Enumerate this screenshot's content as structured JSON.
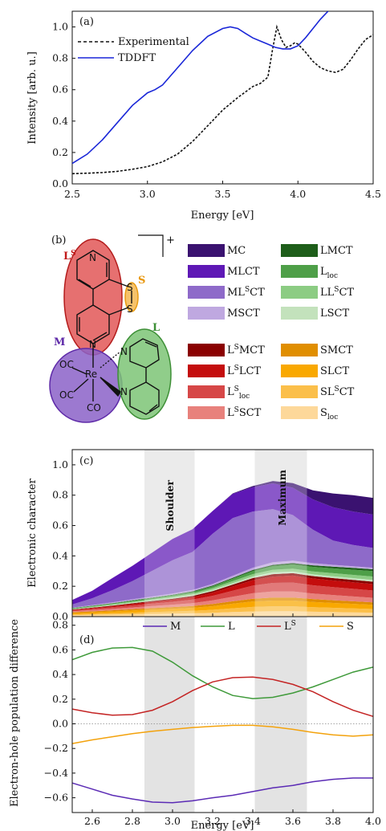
{
  "chart_data": [
    {
      "id": "a",
      "type": "line",
      "panel_label": "(a)",
      "xlabel": "Energy [eV]",
      "ylabel": "Intensity [arb. u.]",
      "xlim": [
        2.5,
        4.5
      ],
      "ylim": [
        0,
        1.1
      ],
      "xticks": [
        2.5,
        3.0,
        3.5,
        4.0,
        4.5
      ],
      "yticks": [
        0,
        0.2,
        0.4,
        0.6,
        0.8,
        1.0
      ],
      "xtick_labels": [
        "2.5",
        "3.0",
        "3.5",
        "4.0",
        "4.5"
      ],
      "ytick_labels": [
        "0.0",
        "0.2",
        "0.4",
        "0.6",
        "0.8",
        "1.0"
      ],
      "legend_position": "top-left",
      "series": [
        {
          "name": "Experimental",
          "color": "#111111",
          "dash": "dashed",
          "x": [
            2.5,
            2.6,
            2.7,
            2.8,
            2.9,
            3.0,
            3.1,
            3.2,
            3.3,
            3.4,
            3.5,
            3.6,
            3.7,
            3.75,
            3.8,
            3.83,
            3.86,
            3.89,
            3.92,
            3.95,
            3.98,
            4.0,
            4.05,
            4.1,
            4.15,
            4.2,
            4.25,
            4.3,
            4.35,
            4.4,
            4.45,
            4.5
          ],
          "y": [
            0.065,
            0.068,
            0.072,
            0.08,
            0.093,
            0.11,
            0.14,
            0.19,
            0.27,
            0.37,
            0.47,
            0.55,
            0.62,
            0.64,
            0.68,
            0.85,
            1.0,
            0.92,
            0.87,
            0.88,
            0.9,
            0.89,
            0.84,
            0.78,
            0.74,
            0.72,
            0.71,
            0.73,
            0.79,
            0.86,
            0.92,
            0.95
          ]
        },
        {
          "name": "TDDFT",
          "color": "#1a27d8",
          "dash": "solid",
          "x": [
            2.5,
            2.6,
            2.7,
            2.8,
            2.9,
            3.0,
            3.05,
            3.1,
            3.2,
            3.3,
            3.4,
            3.5,
            3.55,
            3.6,
            3.65,
            3.7,
            3.75,
            3.8,
            3.85,
            3.9,
            3.95,
            4.0,
            4.05,
            4.1,
            4.15,
            4.2
          ],
          "y": [
            0.13,
            0.19,
            0.28,
            0.39,
            0.5,
            0.58,
            0.6,
            0.63,
            0.74,
            0.85,
            0.94,
            0.99,
            1.0,
            0.99,
            0.96,
            0.93,
            0.91,
            0.89,
            0.87,
            0.86,
            0.86,
            0.88,
            0.93,
            0.99,
            1.05,
            1.1
          ]
        }
      ]
    },
    {
      "id": "c",
      "type": "area",
      "panel_label": "(c)",
      "ylabel": "Electronic character",
      "xlim": [
        2.5,
        4.0
      ],
      "ylim": [
        0,
        1.1
      ],
      "yticks": [
        0,
        0.2,
        0.4,
        0.6,
        0.8,
        1.0
      ],
      "ytick_labels": [
        "0.0",
        "0.2",
        "0.4",
        "0.6",
        "0.8",
        "1.0"
      ],
      "shaded_regions": [
        {
          "label": "Shoulder",
          "x_range": [
            2.86,
            3.11
          ]
        },
        {
          "label": "Maximum",
          "x_range": [
            3.41,
            3.67
          ]
        }
      ],
      "x": [
        2.5,
        2.6,
        2.7,
        2.8,
        2.9,
        3.0,
        3.1,
        3.2,
        3.3,
        3.4,
        3.5,
        3.6,
        3.7,
        3.8,
        3.9,
        4.0
      ],
      "stack_note": "stacked from bottom (first) to top (last)",
      "series": [
        {
          "name": "Sloc",
          "color": "#fdd89a",
          "values": [
            0.01,
            0.012,
            0.014,
            0.016,
            0.018,
            0.02,
            0.022,
            0.025,
            0.03,
            0.034,
            0.036,
            0.036,
            0.032,
            0.03,
            0.028,
            0.026
          ]
        },
        {
          "name": "SLSCT",
          "color": "#fbbf4a",
          "values": [
            0.005,
            0.006,
            0.008,
            0.01,
            0.012,
            0.014,
            0.016,
            0.02,
            0.025,
            0.03,
            0.032,
            0.032,
            0.03,
            0.028,
            0.026,
            0.024
          ]
        },
        {
          "name": "SLCT",
          "color": "#f9a800",
          "values": [
            0.008,
            0.01,
            0.012,
            0.014,
            0.016,
            0.018,
            0.02,
            0.024,
            0.03,
            0.036,
            0.038,
            0.038,
            0.035,
            0.032,
            0.03,
            0.028
          ]
        },
        {
          "name": "SMCT",
          "color": "#e08e00",
          "values": [
            0.006,
            0.007,
            0.008,
            0.009,
            0.01,
            0.011,
            0.012,
            0.014,
            0.016,
            0.018,
            0.02,
            0.02,
            0.019,
            0.018,
            0.017,
            0.016
          ]
        },
        {
          "name": "LSSCT",
          "color": "#e8817c",
          "values": [
            0.006,
            0.008,
            0.01,
            0.012,
            0.014,
            0.016,
            0.019,
            0.024,
            0.03,
            0.036,
            0.04,
            0.04,
            0.036,
            0.034,
            0.032,
            0.03
          ]
        },
        {
          "name": "LSloc",
          "color": "#d64747",
          "values": [
            0.006,
            0.008,
            0.01,
            0.013,
            0.016,
            0.019,
            0.023,
            0.03,
            0.04,
            0.05,
            0.056,
            0.058,
            0.054,
            0.052,
            0.05,
            0.048
          ]
        },
        {
          "name": "LSLCT",
          "color": "#c40d0d",
          "values": [
            0.004,
            0.005,
            0.007,
            0.009,
            0.011,
            0.013,
            0.016,
            0.021,
            0.028,
            0.036,
            0.042,
            0.046,
            0.045,
            0.044,
            0.043,
            0.042
          ]
        },
        {
          "name": "LSMCT",
          "color": "#8a0000",
          "values": [
            0.002,
            0.003,
            0.004,
            0.005,
            0.006,
            0.007,
            0.008,
            0.01,
            0.012,
            0.014,
            0.016,
            0.016,
            0.016,
            0.016,
            0.016,
            0.016
          ]
        },
        {
          "name": "LSCT",
          "color": "#c3e2bc",
          "values": [
            0.002,
            0.003,
            0.004,
            0.005,
            0.006,
            0.007,
            0.008,
            0.009,
            0.01,
            0.011,
            0.012,
            0.012,
            0.012,
            0.012,
            0.012,
            0.012
          ]
        },
        {
          "name": "LLSCT",
          "color": "#8ccc83",
          "values": [
            0.003,
            0.004,
            0.005,
            0.006,
            0.007,
            0.008,
            0.009,
            0.011,
            0.013,
            0.015,
            0.017,
            0.018,
            0.019,
            0.02,
            0.021,
            0.022
          ]
        },
        {
          "name": "Lloc",
          "color": "#4e9f48",
          "values": [
            0.003,
            0.004,
            0.005,
            0.006,
            0.007,
            0.008,
            0.01,
            0.012,
            0.016,
            0.02,
            0.024,
            0.028,
            0.03,
            0.032,
            0.034,
            0.036
          ]
        },
        {
          "name": "LMCT",
          "color": "#1e5e1a",
          "values": [
            0.002,
            0.002,
            0.002,
            0.003,
            0.003,
            0.003,
            0.004,
            0.005,
            0.006,
            0.007,
            0.008,
            0.009,
            0.01,
            0.011,
            0.012,
            0.012
          ]
        },
        {
          "name": "MSCT",
          "color": "#bfa8e0",
          "values": [
            0.003,
            0.004,
            0.005,
            0.006,
            0.007,
            0.008,
            0.009,
            0.011,
            0.013,
            0.015,
            0.017,
            0.016,
            0.014,
            0.012,
            0.011,
            0.01
          ]
        },
        {
          "name": "MLSCT",
          "color": "#8e6ac9",
          "values": [
            0.02,
            0.045,
            0.08,
            0.12,
            0.17,
            0.22,
            0.25,
            0.33,
            0.38,
            0.37,
            0.35,
            0.3,
            0.22,
            0.16,
            0.14,
            0.13
          ]
        },
        {
          "name": "MLCT",
          "color": "#5e18b5",
          "values": [
            0.03,
            0.05,
            0.08,
            0.1,
            0.12,
            0.14,
            0.15,
            0.15,
            0.16,
            0.16,
            0.17,
            0.18,
            0.2,
            0.22,
            0.22,
            0.22
          ]
        },
        {
          "name": "MC",
          "color": "#3a1270",
          "values": [
            0.0,
            0.0,
            0.0,
            0.0,
            0.0,
            0.0,
            0.0,
            0.0,
            0.003,
            0.008,
            0.015,
            0.03,
            0.06,
            0.09,
            0.108,
            0.11
          ]
        }
      ]
    },
    {
      "id": "d",
      "type": "line",
      "panel_label": "(d)",
      "xlabel": "Energy [eV]",
      "ylabel": "Electron-hole population difference",
      "xlim": [
        2.5,
        4.0
      ],
      "ylim": [
        -0.72,
        0.87
      ],
      "xticks": [
        2.6,
        2.8,
        3.0,
        3.2,
        3.4,
        3.6,
        3.8,
        4.0
      ],
      "xtick_labels": [
        "2.6",
        "2.8",
        "3.0",
        "3.2",
        "3.4",
        "3.6",
        "3.8",
        "4.0"
      ],
      "yticks": [
        -0.6,
        -0.4,
        -0.2,
        0.0,
        0.2,
        0.4,
        0.6,
        0.8
      ],
      "ytick_labels": [
        "−0.6",
        "−0.4",
        "−0.2",
        "0.0",
        "0.2",
        "0.4",
        "0.6",
        "0.8"
      ],
      "legend_position": "top",
      "shaded_regions": [
        {
          "x_range": [
            2.86,
            3.11
          ]
        },
        {
          "x_range": [
            3.41,
            3.67
          ]
        }
      ],
      "series": [
        {
          "name": "M",
          "color": "#5b2bb5",
          "x": [
            2.5,
            2.6,
            2.7,
            2.8,
            2.9,
            3.0,
            3.1,
            3.2,
            3.3,
            3.4,
            3.5,
            3.6,
            3.7,
            3.8,
            3.9,
            4.0
          ],
          "y": [
            -0.48,
            -0.53,
            -0.58,
            -0.61,
            -0.635,
            -0.64,
            -0.625,
            -0.6,
            -0.58,
            -0.55,
            -0.52,
            -0.5,
            -0.47,
            -0.45,
            -0.44,
            -0.44
          ]
        },
        {
          "name": "L",
          "color": "#3f9a3a",
          "x": [
            2.5,
            2.6,
            2.7,
            2.8,
            2.9,
            3.0,
            3.1,
            3.2,
            3.3,
            3.4,
            3.5,
            3.6,
            3.7,
            3.8,
            3.9,
            4.0
          ],
          "y": [
            0.52,
            0.58,
            0.615,
            0.62,
            0.59,
            0.5,
            0.39,
            0.3,
            0.23,
            0.205,
            0.215,
            0.25,
            0.3,
            0.36,
            0.42,
            0.46
          ]
        },
        {
          "name": "LS",
          "color": "#c42424",
          "x": [
            2.5,
            2.6,
            2.7,
            2.8,
            2.9,
            3.0,
            3.1,
            3.2,
            3.3,
            3.4,
            3.5,
            3.6,
            3.7,
            3.8,
            3.9,
            4.0
          ],
          "y": [
            0.12,
            0.09,
            0.07,
            0.075,
            0.11,
            0.18,
            0.27,
            0.34,
            0.375,
            0.38,
            0.36,
            0.32,
            0.26,
            0.18,
            0.11,
            0.06
          ]
        },
        {
          "name": "S",
          "color": "#f3a20c",
          "x": [
            2.5,
            2.6,
            2.7,
            2.8,
            2.9,
            3.0,
            3.1,
            3.2,
            3.3,
            3.4,
            3.5,
            3.6,
            3.7,
            3.8,
            3.9,
            4.0
          ],
          "y": [
            -0.16,
            -0.13,
            -0.105,
            -0.08,
            -0.06,
            -0.045,
            -0.03,
            -0.02,
            -0.012,
            -0.012,
            -0.025,
            -0.045,
            -0.07,
            -0.09,
            -0.1,
            -0.09
          ]
        }
      ]
    }
  ],
  "panel_b": {
    "panel_label": "(b)",
    "charge": "+",
    "group_labels": {
      "LS_base": "L",
      "LS_sup": "S",
      "S": "S",
      "M": "M",
      "L": "L"
    },
    "atom_labels": {
      "N_top": "N",
      "S1": "S",
      "S2": "S",
      "N_mid": "N",
      "Re": "Re",
      "N_bpy1": "N",
      "N_bpy2": "N",
      "CO1": "OC",
      "CO2": "OC",
      "CO3": "CO"
    },
    "legend": [
      {
        "label": "MC",
        "color": "#3a1270",
        "parts": [
          {
            "t": "MC"
          }
        ]
      },
      {
        "label": "LMCT",
        "color": "#1e5e1a",
        "parts": [
          {
            "t": "LMCT"
          }
        ]
      },
      {
        "label": "MLCT",
        "color": "#5e18b5",
        "parts": [
          {
            "t": "MLCT"
          }
        ]
      },
      {
        "label": "Lloc",
        "color": "#4e9f48",
        "parts": [
          {
            "t": "L"
          },
          {
            "t": "loc",
            "s": "sub"
          }
        ]
      },
      {
        "label": "MLSCT",
        "color": "#8e6ac9",
        "parts": [
          {
            "t": "ML"
          },
          {
            "t": "S",
            "s": "sup"
          },
          {
            "t": "CT"
          }
        ]
      },
      {
        "label": "LLSCT",
        "color": "#8ccc83",
        "parts": [
          {
            "t": "LL"
          },
          {
            "t": "S",
            "s": "sup"
          },
          {
            "t": "CT"
          }
        ]
      },
      {
        "label": "MSCT",
        "color": "#bfa8e0",
        "parts": [
          {
            "t": "MSCT"
          }
        ]
      },
      {
        "label": "LSCT",
        "color": "#c3e2bc",
        "parts": [
          {
            "t": "LSCT"
          }
        ]
      },
      {
        "label": "LSMCT",
        "color": "#8a0000",
        "parts": [
          {
            "t": "L"
          },
          {
            "t": "S",
            "s": "sup"
          },
          {
            "t": "MCT"
          }
        ]
      },
      {
        "label": "SMCT",
        "color": "#e08e00",
        "parts": [
          {
            "t": "SMCT"
          }
        ]
      },
      {
        "label": "LSLCT",
        "color": "#c40d0d",
        "parts": [
          {
            "t": "L"
          },
          {
            "t": "S",
            "s": "sup"
          },
          {
            "t": "LCT"
          }
        ]
      },
      {
        "label": "SLCT",
        "color": "#f9a800",
        "parts": [
          {
            "t": "SLCT"
          }
        ]
      },
      {
        "label": "LSloc",
        "color": "#d64747",
        "parts": [
          {
            "t": "L"
          },
          {
            "t": "S",
            "s": "sup"
          },
          {
            "t": "loc",
            "s": "sub"
          }
        ]
      },
      {
        "label": "SLSCT",
        "color": "#fbbf4a",
        "parts": [
          {
            "t": "SL"
          },
          {
            "t": "S",
            "s": "sup"
          },
          {
            "t": "CT"
          }
        ]
      },
      {
        "label": "LSSCT",
        "color": "#e8817c",
        "parts": [
          {
            "t": "L"
          },
          {
            "t": "S",
            "s": "sup"
          },
          {
            "t": "SCT"
          }
        ]
      },
      {
        "label": "Sloc",
        "color": "#fdd89a",
        "parts": [
          {
            "t": "S"
          },
          {
            "t": "loc",
            "s": "sub"
          }
        ]
      }
    ]
  }
}
